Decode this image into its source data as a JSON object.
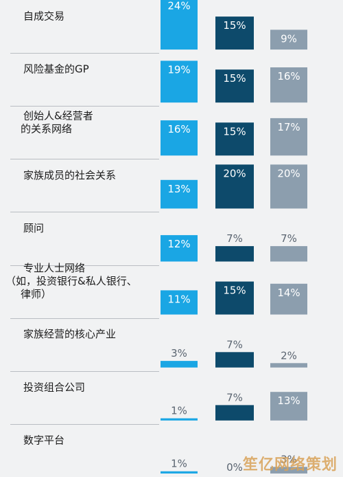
{
  "chart_data": {
    "type": "bar",
    "orientation": "vertical-grouped",
    "categories": [
      [
        "自成交易"
      ],
      [
        "风险基金的GP"
      ],
      [
        "创始人&经营者",
        "的关系网络"
      ],
      [
        "家族成员的社会关系"
      ],
      [
        "顾问"
      ],
      [
        "专业人士网络",
        "（如，投资银行&私人银行、",
        "律师）"
      ],
      [
        "家族经营的核心产业"
      ],
      [
        "投资组合公司"
      ],
      [
        "数字平台"
      ]
    ],
    "series": [
      {
        "values": [
          24,
          19,
          16,
          13,
          12,
          11,
          3,
          1,
          1
        ],
        "labels": [
          "24%",
          "19%",
          "16%",
          "13%",
          "12%",
          "11%",
          "3%",
          "1%",
          "1%"
        ]
      },
      {
        "values": [
          15,
          15,
          15,
          20,
          7,
          15,
          7,
          7,
          0
        ],
        "labels": [
          "15%",
          "15%",
          "15%",
          "20%",
          "7%",
          "15%",
          "7%",
          "7%",
          "0%"
        ]
      },
      {
        "values": [
          9,
          16,
          17,
          20,
          7,
          14,
          2,
          13,
          3
        ],
        "labels": [
          "9%",
          "16%",
          "17%",
          "20%",
          "7%",
          "14%",
          "2%",
          "13%",
          "3%"
        ]
      }
    ],
    "colors": [
      "#1aa6e4",
      "#0d4a6b",
      "#8c9eae"
    ],
    "grid": false,
    "legend": "none"
  },
  "watermark": "笙亿网络策划"
}
